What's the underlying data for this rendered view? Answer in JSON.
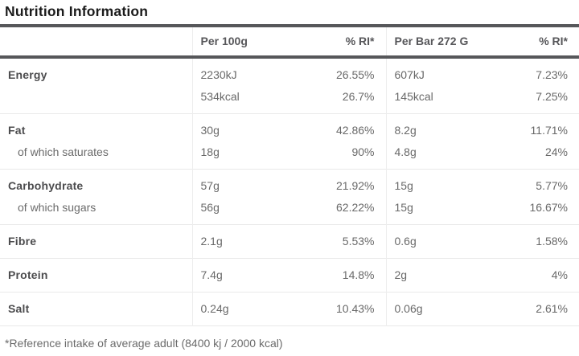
{
  "title": "Nutrition Information",
  "table": {
    "headers": {
      "label": "",
      "per100": "Per 100g",
      "ri_a": "% RI*",
      "perbar": "Per Bar 272 G",
      "ri_b": "% RI*"
    },
    "rows": [
      {
        "label": "Energy",
        "per100": "2230kJ",
        "ri_a": "26.55%",
        "perbar": "607kJ",
        "ri_b": "7.23%"
      },
      {
        "label": "",
        "per100": "534kcal",
        "ri_a": "26.7%",
        "perbar": "145kcal",
        "ri_b": "7.25%"
      },
      {
        "label": "Fat",
        "per100": "30g",
        "ri_a": "42.86%",
        "perbar": "8.2g",
        "ri_b": "11.71%"
      },
      {
        "label": "of which saturates",
        "per100": "18g",
        "ri_a": "90%",
        "perbar": "4.8g",
        "ri_b": "24%"
      },
      {
        "label": "Carbohydrate",
        "per100": "57g",
        "ri_a": "21.92%",
        "perbar": "15g",
        "ri_b": "5.77%"
      },
      {
        "label": "of which sugars",
        "per100": "56g",
        "ri_a": "62.22%",
        "perbar": "15g",
        "ri_b": "16.67%"
      },
      {
        "label": "Fibre",
        "per100": "2.1g",
        "ri_a": "5.53%",
        "perbar": "0.6g",
        "ri_b": "1.58%"
      },
      {
        "label": "Protein",
        "per100": "7.4g",
        "ri_a": "14.8%",
        "perbar": "2g",
        "ri_b": "4%"
      },
      {
        "label": "Salt",
        "per100": "0.24g",
        "ri_a": "10.43%",
        "perbar": "0.06g",
        "ri_b": "2.61%"
      }
    ]
  },
  "footnote": "*Reference intake of average adult (8400 kj / 2000 kcal)",
  "colors": {
    "rule_dark": "#56575a",
    "rule_light": "#e9e9e9",
    "column_divider": "#ededed",
    "title_text": "#1b1b1b",
    "label_text": "#4c4c4e",
    "value_text": "#696969"
  }
}
